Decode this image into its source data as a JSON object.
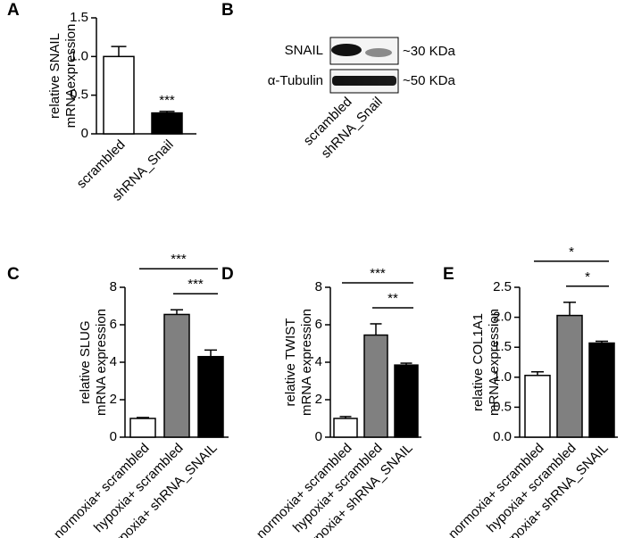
{
  "chart_data": [
    {
      "type": "bar",
      "label": "A",
      "ylabel": [
        "relative SNAIL",
        "mRNAexpression"
      ],
      "categories": [
        "scrambled",
        "shRNA_Snail"
      ],
      "values": [
        1.0,
        0.27
      ],
      "errors": [
        0.13,
        0.02
      ],
      "colors": [
        "#ffffff",
        "#000000"
      ],
      "ylim": [
        0,
        1.5
      ],
      "yticks": [
        0,
        0.5,
        {
          "value": 1,
          "label": "1.0"
        },
        1.5
      ],
      "annotations": [
        {
          "text": "***",
          "category": "shRNA_Snail"
        }
      ]
    },
    {
      "type": "bar",
      "label": "C",
      "ylabel": [
        "relative SLUG",
        "mRNA expression"
      ],
      "categories": [
        "normoxia+ scrambled",
        "hypoxia+ scrambled",
        "hypoxia+ shRNA_SNAIL"
      ],
      "values": [
        1.0,
        6.55,
        4.3
      ],
      "errors": [
        0.05,
        0.25,
        0.35
      ],
      "colors": [
        "#ffffff",
        "#808080",
        "#000000"
      ],
      "ylim": [
        0,
        8
      ],
      "yticks": [
        0,
        2,
        4,
        6,
        8
      ],
      "comparisons": [
        {
          "text": "***",
          "categories": [
            "normoxia+ scrambled",
            "hypoxia+ shRNA_SNAIL"
          ]
        },
        {
          "text": "***",
          "categories": [
            "hypoxia+ scrambled",
            "hypoxia+ shRNA_SNAIL"
          ]
        }
      ]
    },
    {
      "type": "bar",
      "label": "D",
      "ylabel": [
        "relative TWIST",
        "mRNA expression"
      ],
      "categories": [
        "normoxia+ scrambled",
        "hypoxia+ scrambled",
        "hypoxia+ shRNA_SNAIL"
      ],
      "values": [
        1.0,
        5.45,
        3.85
      ],
      "errors": [
        0.1,
        0.6,
        0.1
      ],
      "colors": [
        "#ffffff",
        "#808080",
        "#000000"
      ],
      "ylim": [
        0,
        8
      ],
      "yticks": [
        0,
        2,
        4,
        6,
        8
      ],
      "comparisons": [
        {
          "text": "***",
          "categories": [
            "normoxia+ scrambled",
            "hypoxia+ shRNA_SNAIL"
          ]
        },
        {
          "text": "**",
          "categories": [
            "hypoxia+ scrambled",
            "hypoxia+ shRNA_SNAIL"
          ]
        }
      ]
    },
    {
      "type": "bar",
      "label": "E",
      "ylabel": [
        "relative COL1A1",
        "mRNA expression"
      ],
      "categories": [
        "normoxia+ scrambled",
        "hypoxia+ scrambled",
        "hypoxia+ shRNA_SNAIL"
      ],
      "values": [
        1.03,
        2.03,
        1.57
      ],
      "errors": [
        0.06,
        0.22,
        0.03
      ],
      "colors": [
        "#ffffff",
        "#808080",
        "#000000"
      ],
      "ylim": [
        0,
        2.5
      ],
      "yticks": [
        {
          "value": 0,
          "label": "0.0"
        },
        0.5,
        {
          "value": 1,
          "label": "1.0"
        },
        1.5,
        {
          "value": 2,
          "label": "2.0"
        },
        2.5
      ],
      "comparisons": [
        {
          "text": "*",
          "categories": [
            "normoxia+ scrambled",
            "hypoxia+ shRNA_SNAIL"
          ]
        },
        {
          "text": "*",
          "categories": [
            "hypoxia+ scrambled",
            "hypoxia+ shRNA_SNAIL"
          ]
        }
      ]
    }
  ],
  "blot": {
    "label": "B",
    "rows": [
      {
        "name": "SNAIL",
        "size": "~30 KDa"
      },
      {
        "name": "α-Tubulin",
        "size": "~50 KDa"
      }
    ],
    "lanes": [
      "scrambled",
      "shRNA_Snail"
    ]
  }
}
